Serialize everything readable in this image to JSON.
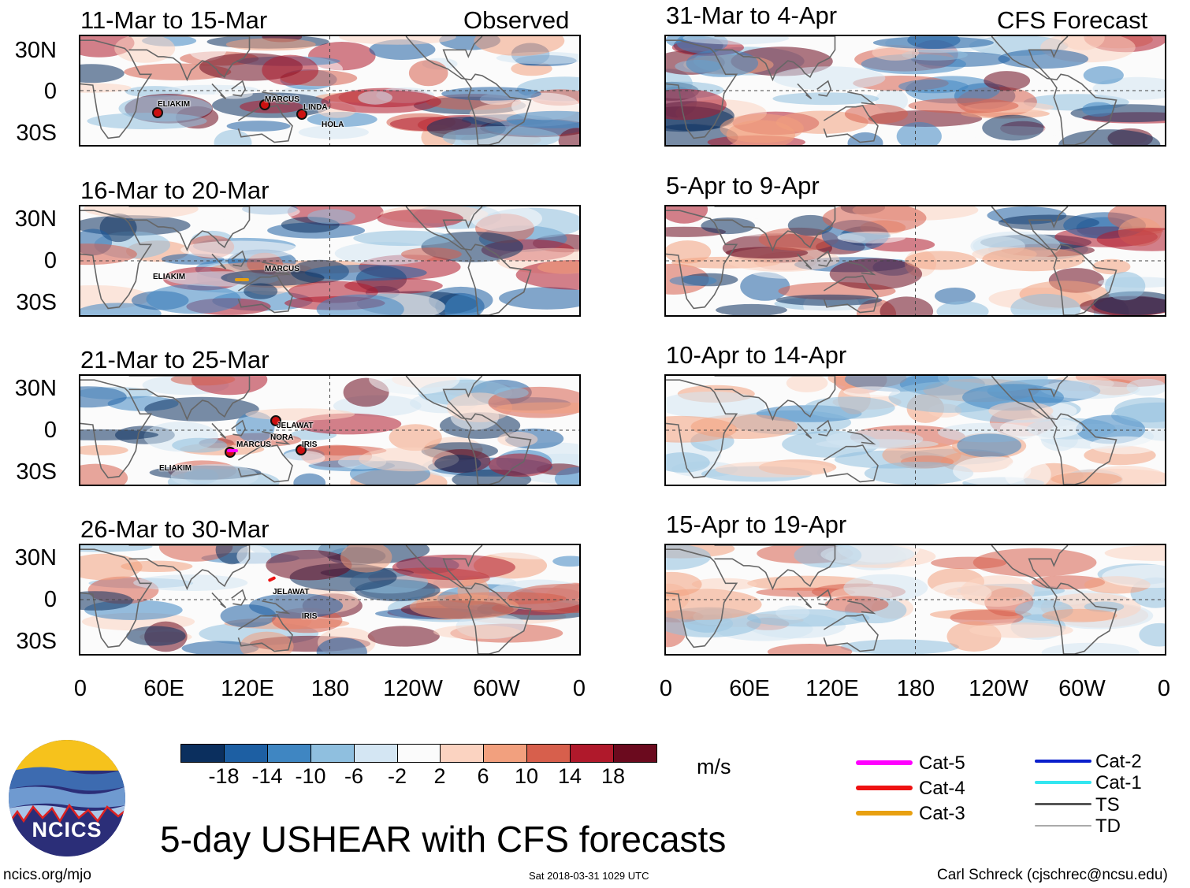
{
  "header": {
    "observed_label": "Observed",
    "forecast_label": "CFS Forecast"
  },
  "panels_left": [
    {
      "period": "11-Mar to 15-Mar",
      "storms": [
        "ELIAKIM",
        "MARCUS",
        "LINDA",
        "HOLA"
      ]
    },
    {
      "period": "16-Mar to 20-Mar",
      "storms": [
        "ELIAKIM",
        "MARCUS"
      ]
    },
    {
      "period": "21-Mar to 25-Mar",
      "storms": [
        "JELAWAT",
        "NORA",
        "MARCUS",
        "IRIS",
        "ELIAKIM"
      ]
    },
    {
      "period": "26-Mar to 30-Mar",
      "storms": [
        "JELAWAT",
        "IRIS"
      ]
    }
  ],
  "panels_right": [
    {
      "period": "31-Mar to 4-Apr"
    },
    {
      "period": "5-Apr to 9-Apr"
    },
    {
      "period": "10-Apr to 14-Apr"
    },
    {
      "period": "15-Apr to 19-Apr"
    }
  ],
  "axes": {
    "lat_labels": [
      "30N",
      "0",
      "30S"
    ],
    "lon_labels": [
      "0",
      "60E",
      "120E",
      "180",
      "120W",
      "60W",
      "0"
    ]
  },
  "colorbar": {
    "ticks": [
      "-18",
      "-14",
      "-10",
      "-6",
      "-2",
      "2",
      "6",
      "10",
      "14",
      "18"
    ],
    "colors": [
      "#0b2f5e",
      "#1d5fa3",
      "#3f86c2",
      "#8fbfdf",
      "#d4e6f3",
      "#fbfbfb",
      "#fbd3c1",
      "#f2a07e",
      "#d75f4c",
      "#b0192b",
      "#6b0a1e"
    ],
    "units": "m/s"
  },
  "legend": [
    {
      "label": "Cat-5",
      "color": "#ff00ff"
    },
    {
      "label": "Cat-4",
      "color": "#ee1111"
    },
    {
      "label": "Cat-3",
      "color": "#e8a010"
    },
    {
      "label": "Cat-2",
      "color": "#0a1fcc"
    },
    {
      "label": "Cat-1",
      "color": "#33e6f0"
    },
    {
      "label": "TS",
      "color": "#555555"
    },
    {
      "label": "TD",
      "color": "#aaaaaa"
    }
  ],
  "footer": {
    "logo_text": "NCICS",
    "title": "5-day USHEAR with CFS forecasts",
    "url": "ncics.org/mjo",
    "timestamp": "Sat 2018-03-31 1029 UTC",
    "credit": "Carl Schreck (cjschrec@ncsu.edu)"
  }
}
